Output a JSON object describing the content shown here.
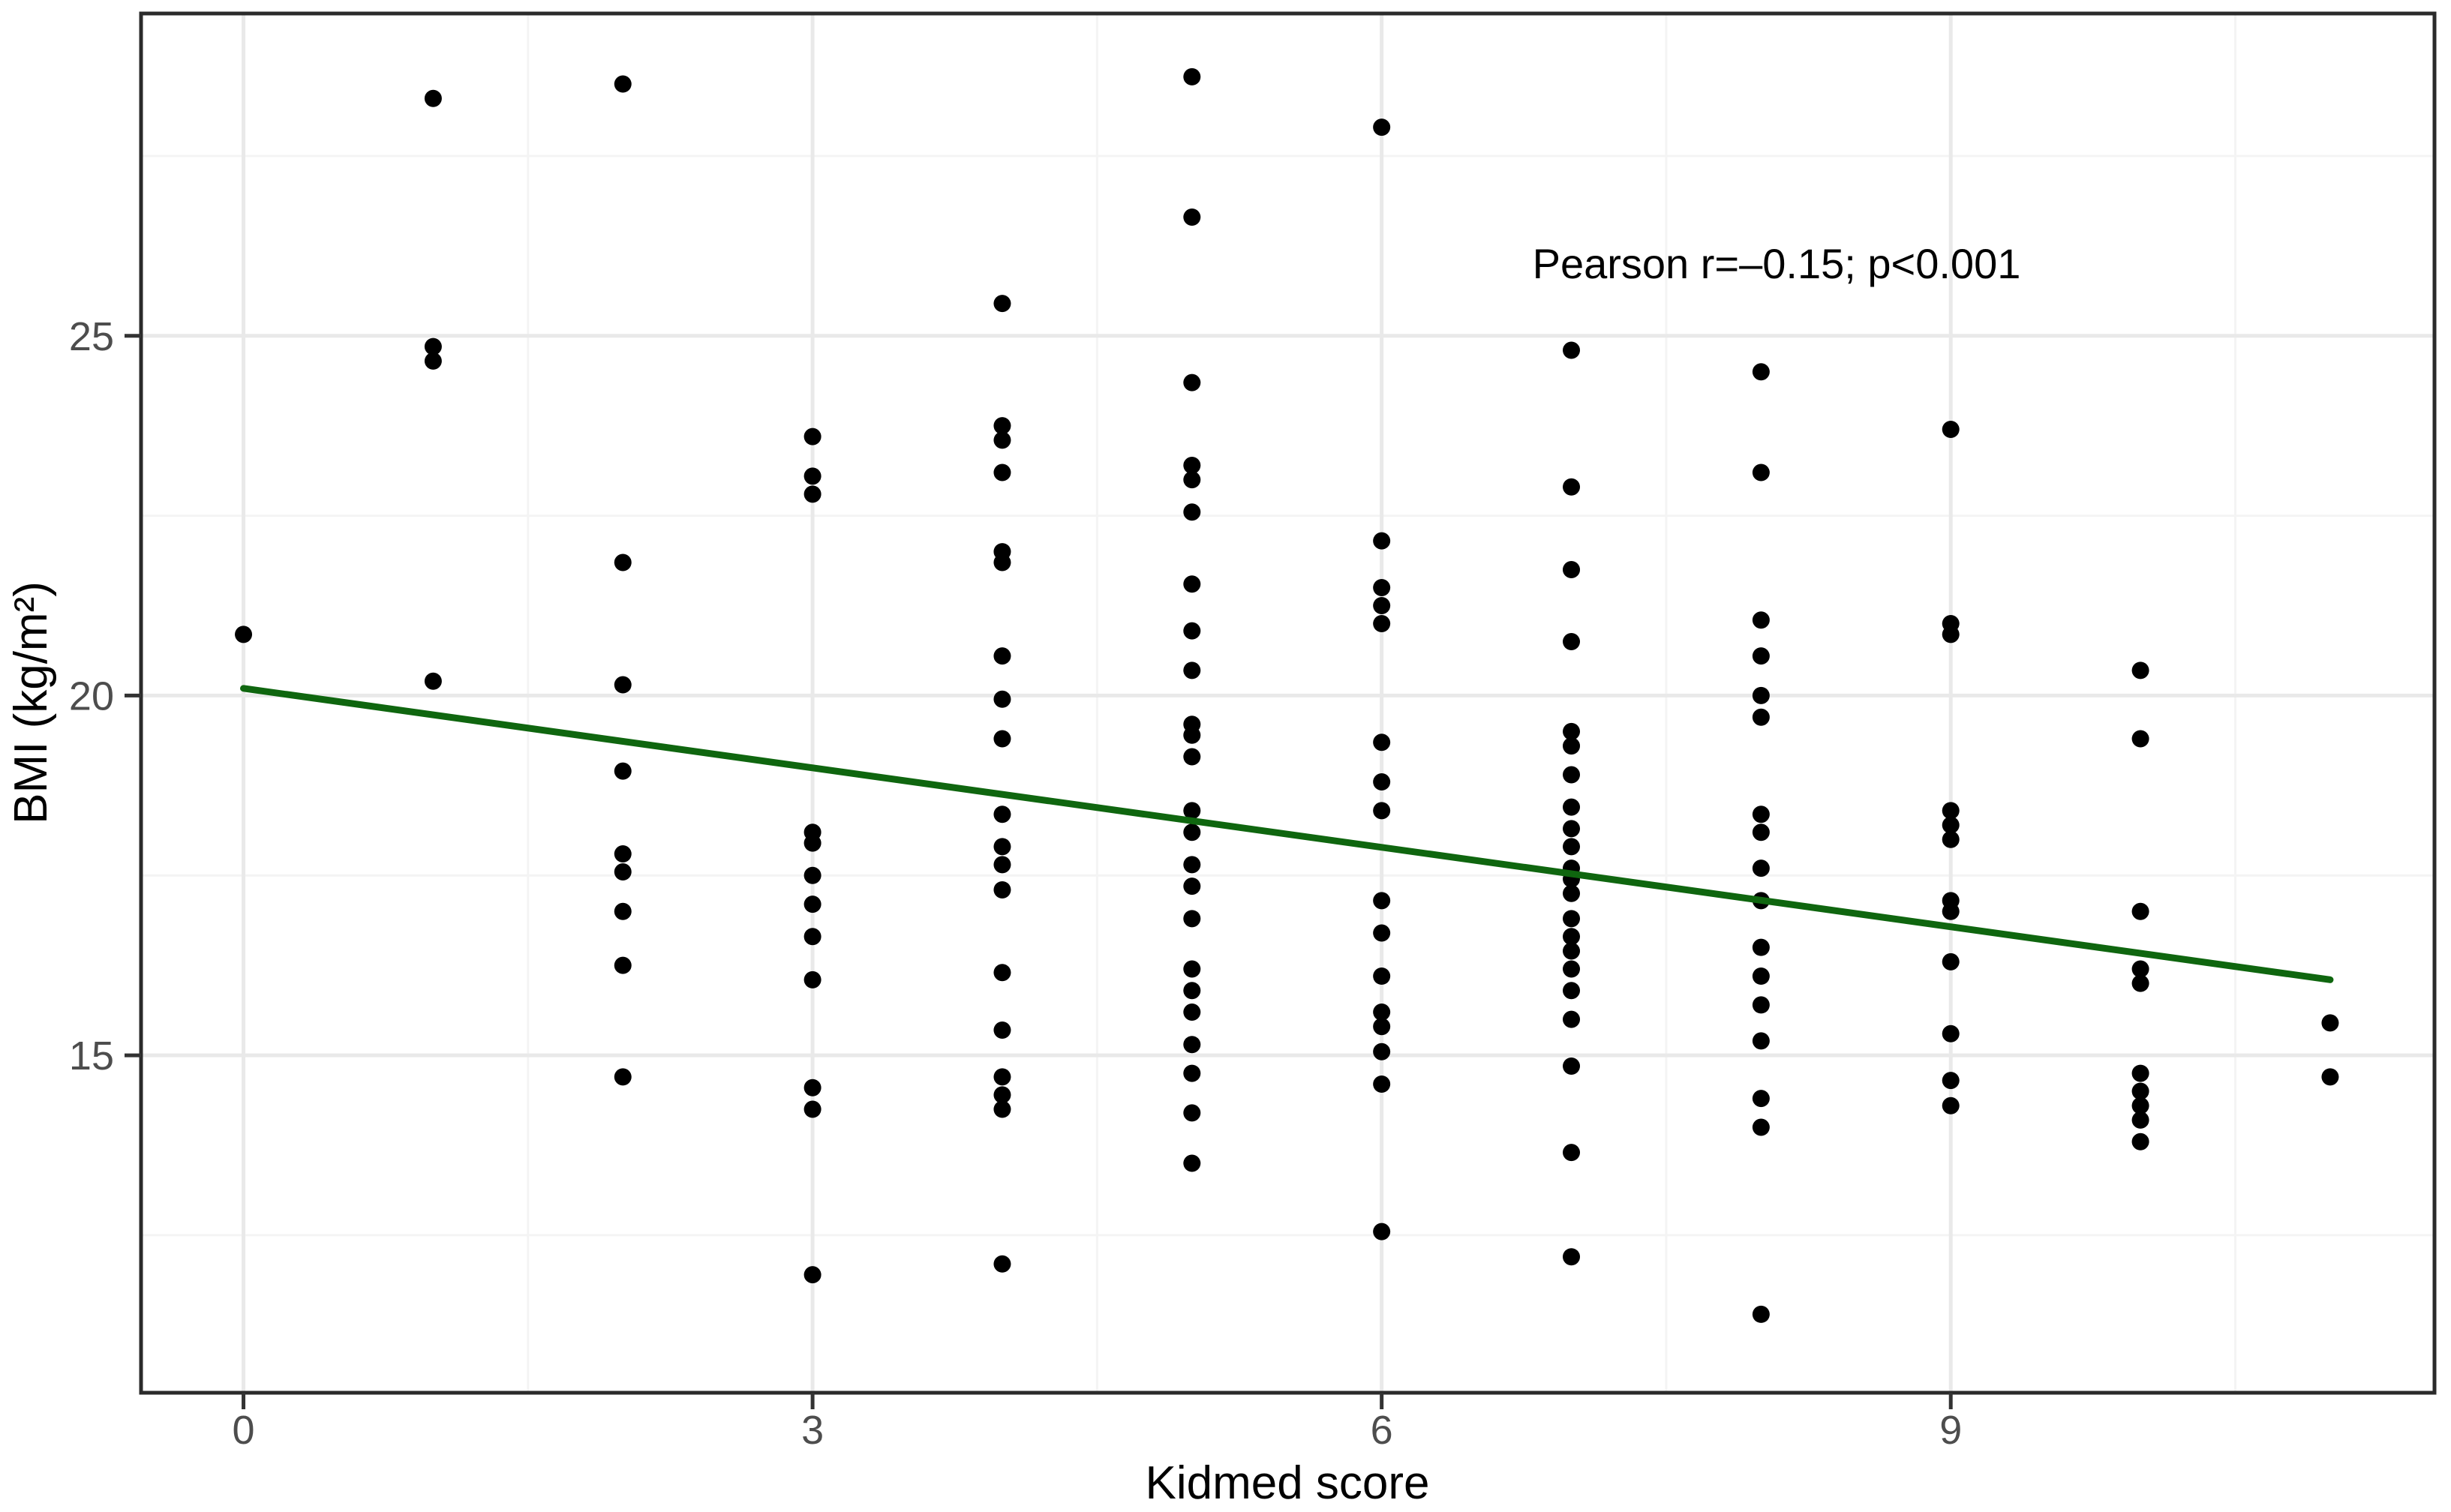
{
  "figure": {
    "background_color": "#ffffff"
  },
  "chart_data": {
    "type": "scatter",
    "title": "",
    "xlabel": "Kidmed score",
    "ylabel": "BMI (kg/m²)",
    "annotation": "Pearson r=–0.15; p<0.001",
    "legend": "none",
    "grid": "on",
    "xlim": [
      -0.54,
      11.55
    ],
    "ylim": [
      10.31,
      29.48
    ],
    "x_ticks": [
      0,
      3,
      6,
      9
    ],
    "y_ticks": [
      15,
      20,
      25
    ],
    "x_minor_gridlines": [
      1.5,
      4.5,
      7.5,
      10.5
    ],
    "y_minor_gridlines": [
      12.5,
      17.5,
      22.5,
      27.5
    ],
    "point_color": "#000000",
    "major_grid_color": "#e9e9e9",
    "minor_grid_color": "#f4f4f4",
    "panel_border_color": "#2b2b2b",
    "tick_mark_color": "#333333",
    "tick_label_color": "#4d4d4d",
    "trend_line": {
      "color": "#0f660f",
      "x_start": 0,
      "y_start": 20.1,
      "x_end": 11,
      "y_end": 16.05
    },
    "columns": [
      {
        "score": 0,
        "bmis": [
          20.85
        ]
      },
      {
        "score": 1,
        "bmis": [
          28.3,
          24.85,
          24.65,
          20.2
        ]
      },
      {
        "score": 2,
        "bmis": [
          28.5,
          21.85,
          20.15,
          18.95,
          17.8,
          17.55,
          17.0,
          16.25,
          14.7
        ]
      },
      {
        "score": 3,
        "bmis": [
          23.6,
          23.05,
          22.8,
          18.1,
          17.95,
          17.5,
          17.1,
          16.65,
          16.05,
          14.55,
          14.25,
          11.95
        ]
      },
      {
        "score": 4,
        "bmis": [
          25.45,
          23.75,
          23.55,
          23.1,
          22.0,
          21.85,
          20.55,
          19.95,
          19.4,
          18.35,
          17.9,
          17.65,
          17.3,
          16.15,
          15.35,
          14.7,
          14.45,
          14.25,
          12.1
        ]
      },
      {
        "score": 5,
        "bmis": [
          28.6,
          26.65,
          24.35,
          23.2,
          23.0,
          22.55,
          21.55,
          20.9,
          20.35,
          19.6,
          19.45,
          19.15,
          18.4,
          18.1,
          17.65,
          17.35,
          16.9,
          16.2,
          15.9,
          15.6,
          15.15,
          14.75,
          14.2,
          13.5
        ]
      },
      {
        "score": 6,
        "bmis": [
          27.9,
          22.15,
          21.5,
          21.25,
          21.0,
          19.35,
          18.8,
          18.4,
          17.15,
          16.7,
          16.1,
          15.6,
          15.4,
          15.05,
          14.6,
          12.55
        ]
      },
      {
        "score": 7,
        "bmis": [
          24.8,
          22.9,
          21.75,
          20.75,
          19.5,
          19.3,
          18.9,
          18.45,
          18.15,
          17.9,
          17.6,
          17.45,
          17.25,
          16.9,
          16.65,
          16.45,
          16.2,
          15.9,
          15.5,
          14.85,
          13.65,
          12.2
        ]
      },
      {
        "score": 8,
        "bmis": [
          24.5,
          23.1,
          21.05,
          20.55,
          20.0,
          19.7,
          18.35,
          18.1,
          17.6,
          17.15,
          16.5,
          16.1,
          15.7,
          15.2,
          14.4,
          14.0,
          11.4
        ]
      },
      {
        "score": 9,
        "bmis": [
          23.7,
          21.0,
          20.85,
          18.4,
          18.2,
          18.0,
          17.15,
          17.0,
          16.3,
          15.3,
          14.65,
          14.3
        ]
      },
      {
        "score": 10,
        "bmis": [
          20.35,
          19.4,
          17.0,
          16.2,
          16.0,
          14.75,
          14.5,
          14.3,
          14.1,
          13.8
        ]
      },
      {
        "score": 11,
        "bmis": [
          15.45,
          14.7
        ]
      }
    ]
  }
}
